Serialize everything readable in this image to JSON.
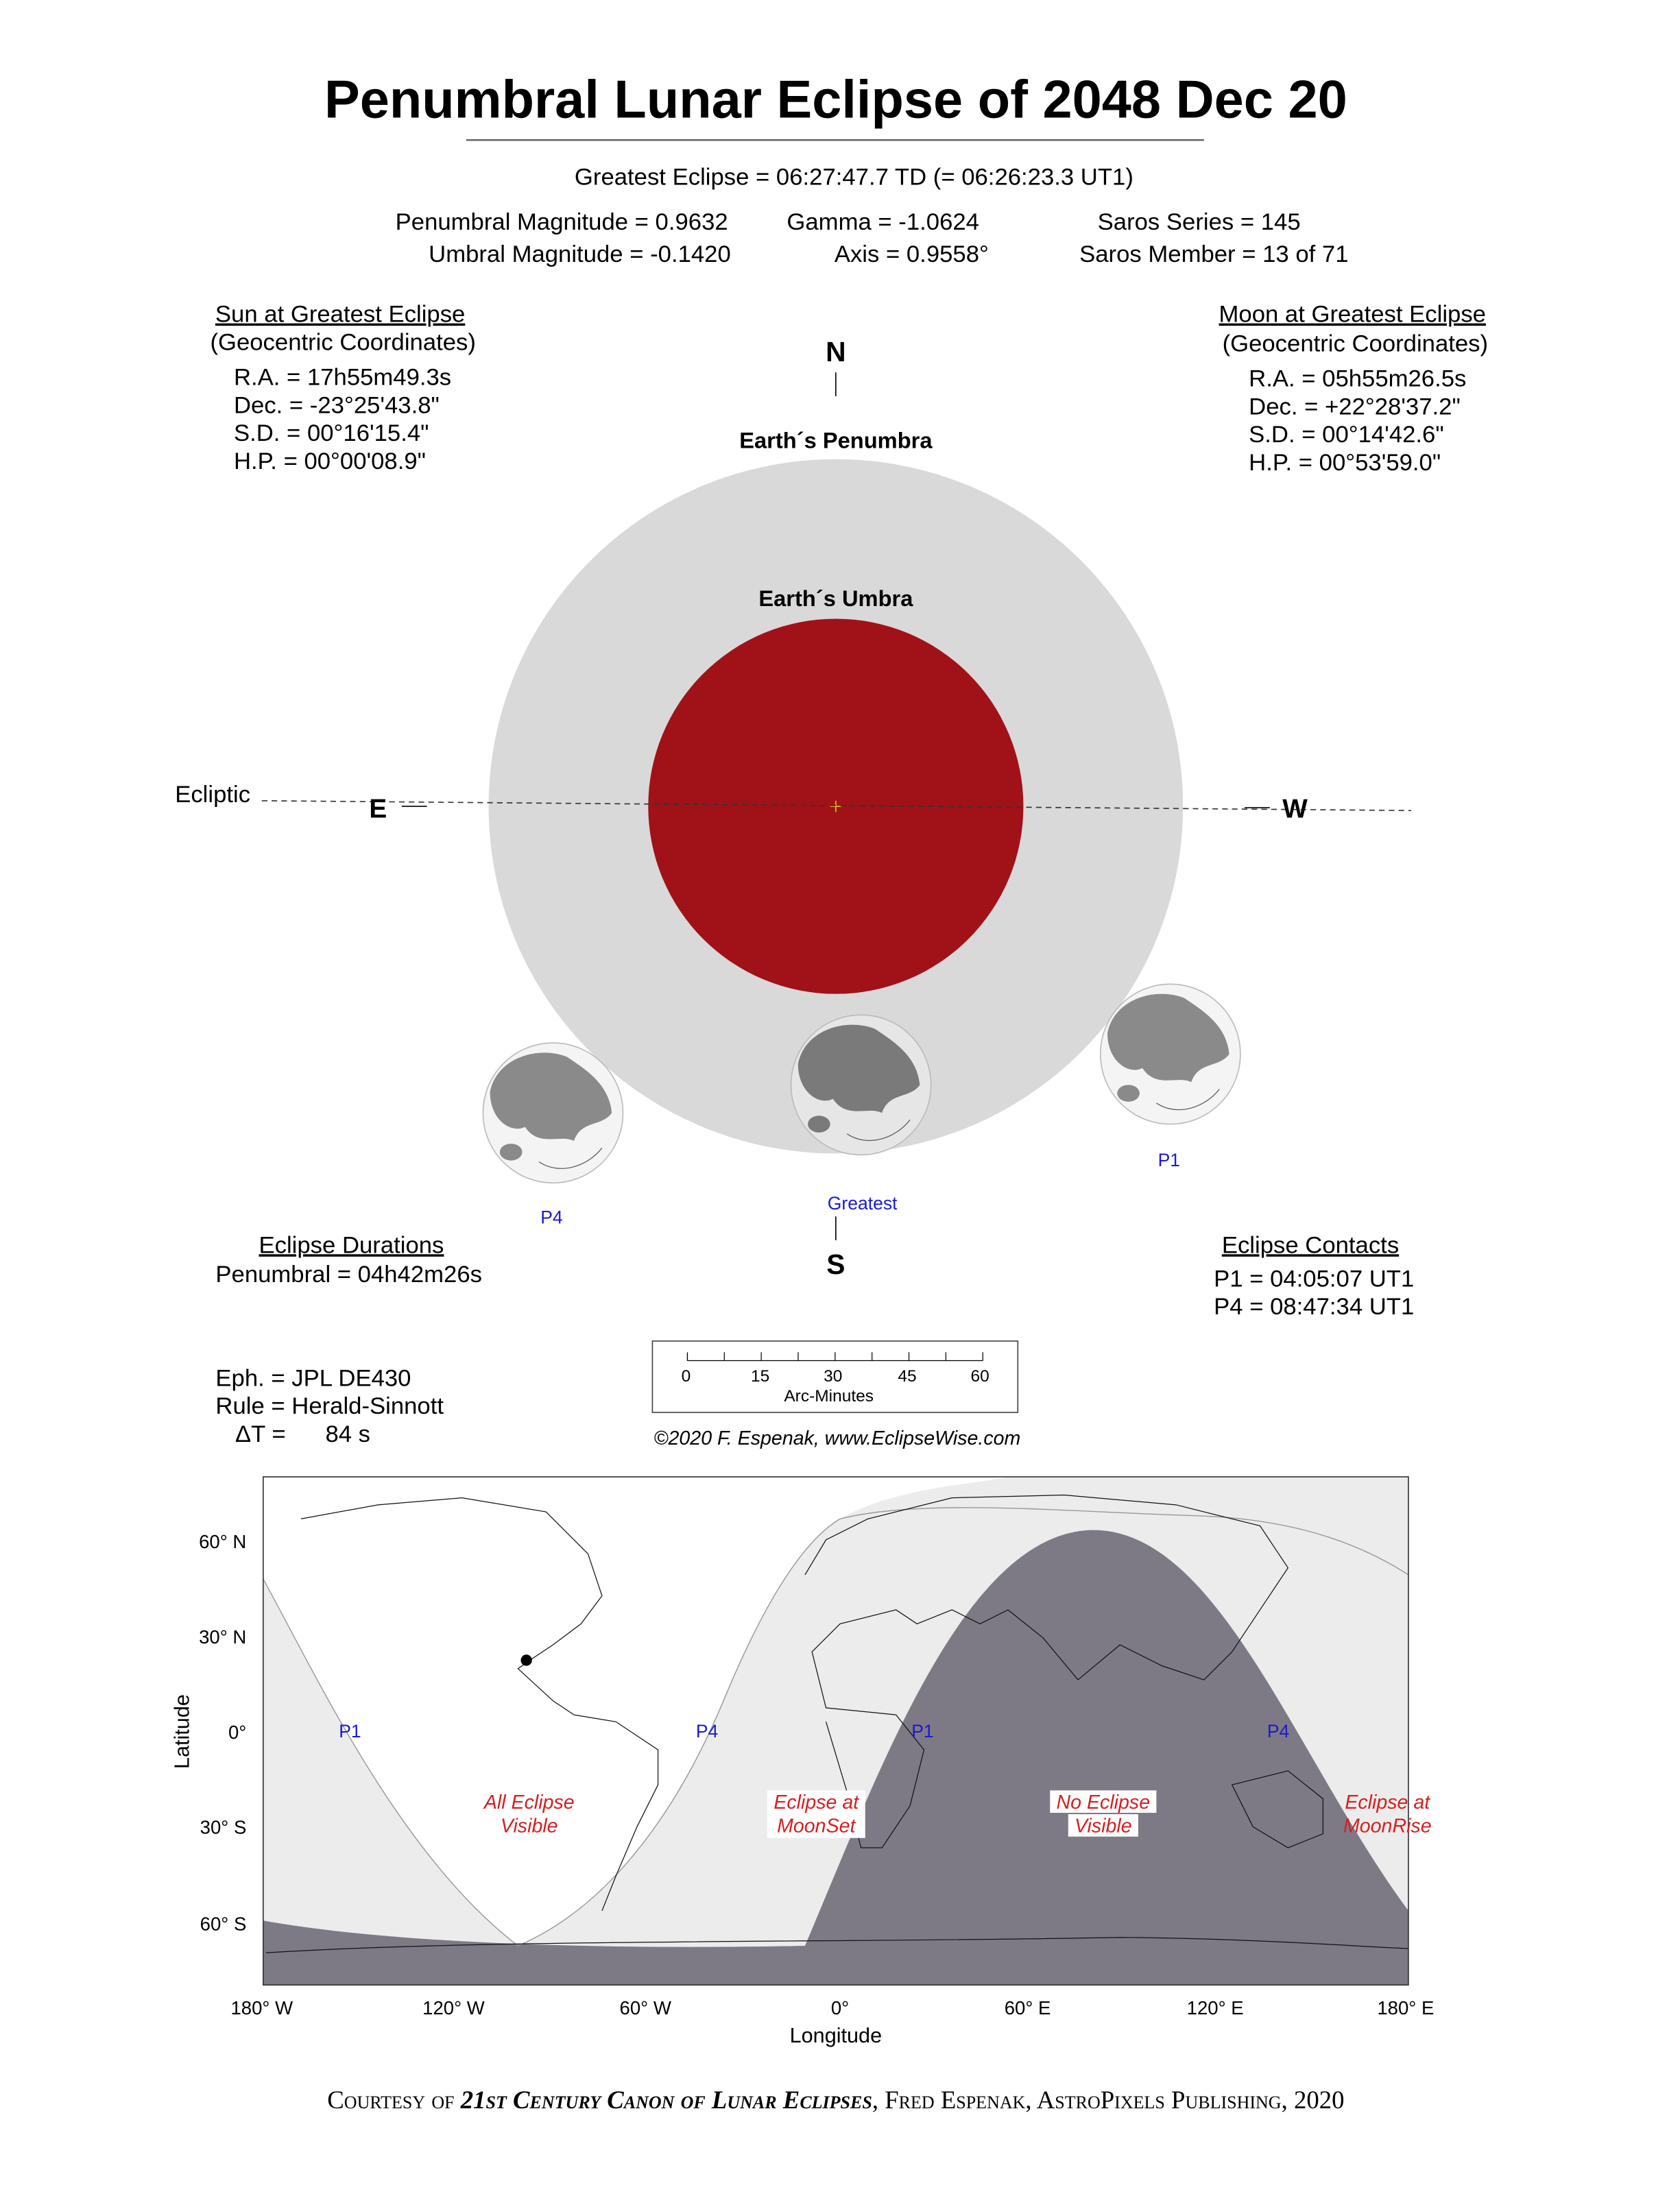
{
  "title": "Penumbral Lunar Eclipse of  2048 Dec 20",
  "greatest_eclipse": "Greatest Eclipse =  06:27:47.7 TD   (= 06:26:23.3 UT1)",
  "params": {
    "penumbral_magnitude": "Penumbral Magnitude =  0.9632",
    "umbral_magnitude": "Umbral Magnitude = -0.1420",
    "gamma": "Gamma = -1.0624",
    "axis": "Axis =  0.9558°",
    "saros_series": "Saros Series = 145",
    "saros_member": "Saros Member = 13 of 71"
  },
  "sun": {
    "heading": "Sun at Greatest Eclipse",
    "sub": "(Geocentric Coordinates)",
    "ra": "R.A. =  17h55m49.3s",
    "dec": "Dec. = -23°25'43.8\"",
    "sd": "S.D. =  00°16'15.4\"",
    "hp": "H.P. =  00°00'08.9\""
  },
  "moon": {
    "heading": "Moon at Greatest Eclipse",
    "sub": "(Geocentric Coordinates)",
    "ra": "R.A. =  05h55m26.5s",
    "dec": "Dec. = +22°28'37.2\"",
    "sd": "S.D. =  00°14'42.6\"",
    "hp": "H.P. =  00°53'59.0\""
  },
  "diagram": {
    "north": "N",
    "south": "S",
    "east": "E",
    "west": "W",
    "ecliptic": "Ecliptic",
    "penumbra_label": "Earth´s Penumbra",
    "umbra_label": "Earth´s Umbra",
    "moon_labels": {
      "p4": "P4",
      "greatest": "Greatest",
      "p1": "P1"
    },
    "colors": {
      "penumbra": "#d9d9d9",
      "umbra": "#a01218",
      "labels": "#1a1ad0"
    }
  },
  "durations": {
    "heading": "Eclipse Durations",
    "penumbral": "Penumbral = 04h42m26s"
  },
  "contacts": {
    "heading": "Eclipse Contacts",
    "p1": "P1 = 04:05:07 UT1",
    "p4": "P4 = 08:47:34 UT1"
  },
  "ephemeris": {
    "eph": "Eph. = JPL DE430",
    "rule": "Rule = Herald-Sinnott",
    "delta_t": "ΔT =      84 s"
  },
  "scale": {
    "ticks": [
      "0",
      "15",
      "30",
      "45",
      "60"
    ],
    "unit": "Arc-Minutes"
  },
  "copyright": "©2020  F. Espenak, www.EclipseWise.com",
  "map": {
    "lat_ticks": [
      "60° N",
      "30° N",
      "0°",
      "30° S",
      "60° S"
    ],
    "lon_ticks": [
      "180° W",
      "120° W",
      "60° W",
      "0°",
      "60° E",
      "120° E",
      "180° E"
    ],
    "xlabel": "Longitude",
    "ylabel": "Latitude",
    "contact_labels": [
      "P1",
      "P4",
      "P1",
      "P4"
    ],
    "regions": [
      [
        "All Eclipse",
        "Visible"
      ],
      [
        "Eclipse at",
        "MoonSet"
      ],
      [
        "No Eclipse",
        "Visible"
      ],
      [
        "Eclipse at",
        "MoonRise"
      ]
    ],
    "colors": {
      "no_eclipse": "#7d7a86",
      "partial": "#ececec",
      "all": "#ffffff",
      "region_text": "#d42020"
    }
  },
  "footer": {
    "p1": "Courtesy of ",
    "p2": "21st Century Canon of Lunar Eclipses",
    "p3": ", Fred Espenak, AstroPixels Publishing, 2020"
  }
}
